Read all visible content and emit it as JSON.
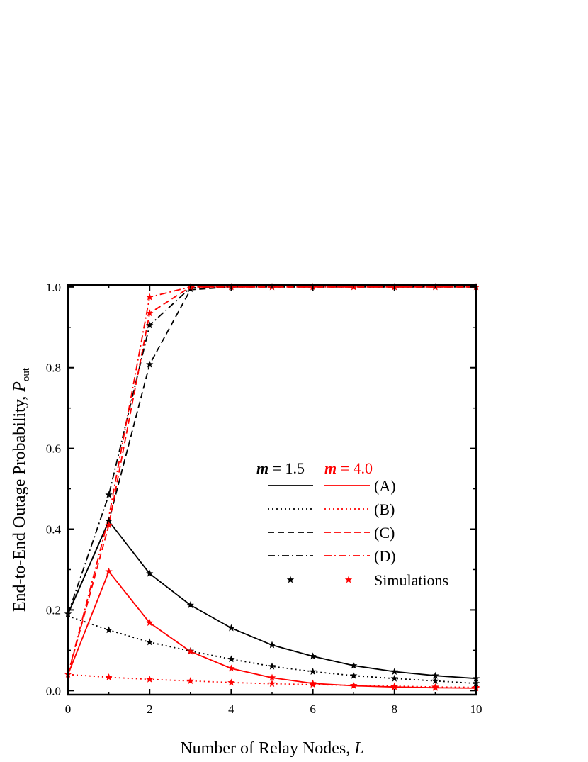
{
  "chart_data": {
    "type": "line",
    "xlabel": "Number of Relay Nodes,",
    "xlabel_var": "L",
    "ylabel": "End-to-End Outage Probability,",
    "ylabel_var": "P",
    "ylabel_sub": "out",
    "xlim": [
      0,
      10
    ],
    "ylim": [
      -0.01,
      1.005
    ],
    "xticks": [
      0,
      2,
      4,
      6,
      8,
      10
    ],
    "yticks": [
      0.0,
      0.2,
      0.4,
      0.6,
      0.8,
      1.0
    ],
    "ytick_labels": [
      "0.0",
      "0.2",
      "0.4",
      "0.6",
      "0.8",
      "1.0"
    ],
    "grid": false,
    "legend_position": "center-right",
    "legend": {
      "header_black_var": "m",
      "header_black_val": " = 1.5",
      "header_red_var": "m",
      "header_red_val": " = 4.0",
      "entries": [
        {
          "style": "solid",
          "label": "(A)"
        },
        {
          "style": "dotted",
          "label": "(B)"
        },
        {
          "style": "dashed",
          "label": "(C)"
        },
        {
          "style": "dashdot",
          "label": "(D)"
        },
        {
          "style": "markers",
          "label": "Simulations"
        }
      ]
    },
    "colors": {
      "black": "#000000",
      "red": "#ff0000"
    },
    "series": [
      {
        "group": "m=1.5",
        "curve": "(A)",
        "style": "solid",
        "color": "#000000",
        "x": [
          0,
          1,
          2,
          3,
          4,
          5,
          6,
          7,
          8,
          9,
          10
        ],
        "y": [
          0.19,
          0.42,
          0.29,
          0.212,
          0.155,
          0.113,
          0.085,
          0.062,
          0.047,
          0.037,
          0.03
        ]
      },
      {
        "group": "m=1.5",
        "curve": "(B)",
        "style": "dotted",
        "color": "#000000",
        "x": [
          0,
          1,
          2,
          3,
          4,
          5,
          6,
          7,
          8,
          9,
          10
        ],
        "y": [
          0.185,
          0.15,
          0.12,
          0.098,
          0.078,
          0.06,
          0.047,
          0.037,
          0.03,
          0.024,
          0.018
        ]
      },
      {
        "group": "m=1.5",
        "curve": "(C)",
        "style": "dashed",
        "color": "#000000",
        "x": [
          0,
          1,
          2,
          3,
          4,
          5,
          6,
          7,
          8,
          9,
          10
        ],
        "y": [
          0.19,
          0.42,
          0.808,
          0.993,
          1.0,
          1.0,
          1.0,
          1.0,
          1.0,
          1.0,
          1.0
        ]
      },
      {
        "group": "m=1.5",
        "curve": "(D)",
        "style": "dashdot",
        "color": "#000000",
        "x": [
          0,
          1,
          2,
          3,
          4,
          5,
          6,
          7,
          8,
          9,
          10
        ],
        "y": [
          0.19,
          0.485,
          0.905,
          0.998,
          1.0,
          1.0,
          1.0,
          1.0,
          1.0,
          1.0,
          1.0
        ]
      },
      {
        "group": "m=4.0",
        "curve": "(A)",
        "style": "solid",
        "color": "#ff0000",
        "x": [
          0,
          1,
          2,
          3,
          4,
          5,
          6,
          7,
          8,
          9,
          10
        ],
        "y": [
          0.04,
          0.295,
          0.168,
          0.097,
          0.055,
          0.032,
          0.018,
          0.012,
          0.009,
          0.007,
          0.006
        ]
      },
      {
        "group": "m=4.0",
        "curve": "(B)",
        "style": "dotted",
        "color": "#ff0000",
        "x": [
          0,
          1,
          2,
          3,
          4,
          5,
          6,
          7,
          8,
          9,
          10
        ],
        "y": [
          0.04,
          0.033,
          0.028,
          0.024,
          0.02,
          0.017,
          0.015,
          0.013,
          0.011,
          0.009,
          0.008
        ]
      },
      {
        "group": "m=4.0",
        "curve": "(C)",
        "style": "dashed",
        "color": "#ff0000",
        "x": [
          0,
          1,
          2,
          3,
          4,
          5,
          6,
          7,
          8,
          9,
          10
        ],
        "y": [
          0.04,
          0.41,
          0.935,
          1.0,
          1.0,
          1.0,
          1.0,
          1.0,
          1.0,
          1.0,
          1.0
        ]
      },
      {
        "group": "m=4.0",
        "curve": "(D)",
        "style": "dashdot",
        "color": "#ff0000",
        "x": [
          0,
          1,
          2,
          3,
          4,
          5,
          6,
          7,
          8,
          9,
          10
        ],
        "y": [
          0.04,
          0.43,
          0.975,
          1.0,
          1.0,
          1.0,
          1.0,
          1.0,
          1.0,
          1.0,
          1.0
        ]
      }
    ],
    "simulations": [
      {
        "group": "m=1.5",
        "color": "#000000",
        "points": [
          [
            0,
            0.19
          ],
          [
            1,
            0.42
          ],
          [
            2,
            0.29
          ],
          [
            3,
            0.212
          ],
          [
            4,
            0.155
          ],
          [
            5,
            0.113
          ],
          [
            6,
            0.085
          ],
          [
            7,
            0.062
          ],
          [
            8,
            0.047
          ],
          [
            9,
            0.037
          ],
          [
            10,
            0.03
          ],
          [
            1,
            0.15
          ],
          [
            2,
            0.12
          ],
          [
            3,
            0.098
          ],
          [
            4,
            0.078
          ],
          [
            5,
            0.06
          ],
          [
            6,
            0.047
          ],
          [
            7,
            0.037
          ],
          [
            8,
            0.03
          ],
          [
            9,
            0.024
          ],
          [
            10,
            0.018
          ],
          [
            1,
            0.485
          ],
          [
            2,
            0.808
          ],
          [
            2,
            0.905
          ],
          [
            3,
            0.995
          ],
          [
            4,
            1.0
          ],
          [
            5,
            1.0
          ],
          [
            6,
            1.0
          ],
          [
            7,
            1.0
          ],
          [
            8,
            1.0
          ],
          [
            9,
            1.0
          ],
          [
            10,
            1.0
          ]
        ]
      },
      {
        "group": "m=4.0",
        "color": "#ff0000",
        "points": [
          [
            0,
            0.04
          ],
          [
            1,
            0.295
          ],
          [
            2,
            0.168
          ],
          [
            3,
            0.097
          ],
          [
            4,
            0.055
          ],
          [
            5,
            0.032
          ],
          [
            6,
            0.018
          ],
          [
            7,
            0.012
          ],
          [
            8,
            0.009
          ],
          [
            9,
            0.007
          ],
          [
            10,
            0.006
          ],
          [
            1,
            0.033
          ],
          [
            2,
            0.028
          ],
          [
            3,
            0.024
          ],
          [
            4,
            0.02
          ],
          [
            5,
            0.017
          ],
          [
            6,
            0.015
          ],
          [
            7,
            0.013
          ],
          [
            8,
            0.011
          ],
          [
            9,
            0.009
          ],
          [
            10,
            0.008
          ],
          [
            1,
            0.41
          ],
          [
            2,
            0.935
          ],
          [
            2,
            0.975
          ],
          [
            3,
            1.0
          ],
          [
            4,
            1.0
          ],
          [
            5,
            1.0
          ],
          [
            6,
            1.0
          ],
          [
            7,
            1.0
          ],
          [
            8,
            1.0
          ],
          [
            9,
            1.0
          ],
          [
            10,
            1.0
          ]
        ]
      }
    ]
  }
}
